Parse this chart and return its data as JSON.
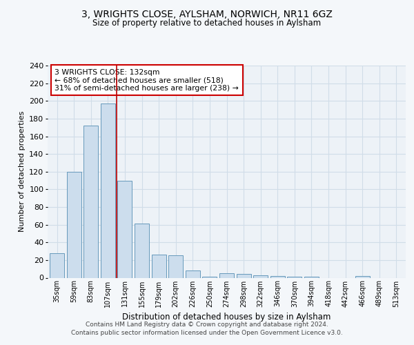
{
  "title_line1": "3, WRIGHTS CLOSE, AYLSHAM, NORWICH, NR11 6GZ",
  "title_line2": "Size of property relative to detached houses in Aylsham",
  "xlabel": "Distribution of detached houses by size in Aylsham",
  "ylabel": "Number of detached properties",
  "categories": [
    "35sqm",
    "59sqm",
    "83sqm",
    "107sqm",
    "131sqm",
    "155sqm",
    "179sqm",
    "202sqm",
    "226sqm",
    "250sqm",
    "274sqm",
    "298sqm",
    "322sqm",
    "346sqm",
    "370sqm",
    "394sqm",
    "418sqm",
    "442sqm",
    "466sqm",
    "489sqm",
    "513sqm"
  ],
  "values": [
    28,
    120,
    172,
    197,
    110,
    61,
    26,
    25,
    8,
    1,
    5,
    4,
    3,
    2,
    1,
    1,
    0,
    0,
    2,
    0,
    0
  ],
  "bar_color": "#ccdded",
  "bar_edge_color": "#6699bb",
  "vline_x": 4.0,
  "vline_color": "#bb0000",
  "annotation_text": "3 WRIGHTS CLOSE: 132sqm\n← 68% of detached houses are smaller (518)\n31% of semi-detached houses are larger (238) →",
  "annotation_box_color": "#ffffff",
  "annotation_box_edge": "#cc0000",
  "ylim": [
    0,
    240
  ],
  "yticks": [
    0,
    20,
    40,
    60,
    80,
    100,
    120,
    140,
    160,
    180,
    200,
    220,
    240
  ],
  "grid_color": "#d0dde8",
  "footer_line1": "Contains HM Land Registry data © Crown copyright and database right 2024.",
  "footer_line2": "Contains public sector information licensed under the Open Government Licence v3.0.",
  "bg_color": "#f4f7fa",
  "plot_bg_color": "#edf2f7"
}
